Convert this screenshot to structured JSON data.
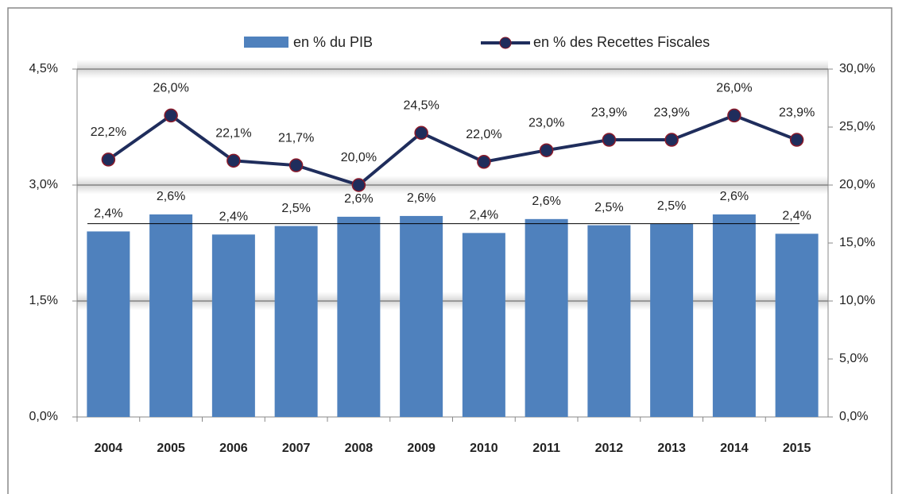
{
  "chart_data": {
    "type": "bar-line",
    "categories": [
      "2004",
      "2005",
      "2006",
      "2007",
      "2008",
      "2009",
      "2010",
      "2011",
      "2012",
      "2013",
      "2014",
      "2015"
    ],
    "series": [
      {
        "name": "en % du  PIB",
        "type": "bar",
        "color": "#4f81bd",
        "axis": "y",
        "values": [
          2.4,
          2.62,
          2.36,
          2.47,
          2.59,
          2.6,
          2.38,
          2.56,
          2.48,
          2.5,
          2.62,
          2.37
        ],
        "value_labels": [
          "2,4%",
          "2,6%",
          "2,4%",
          "2,5%",
          "2,6%",
          "2,6%",
          "2,4%",
          "2,6%",
          "2,5%",
          "2,5%",
          "2,6%",
          "2,4%"
        ]
      },
      {
        "name": "en % des Recettes Fiscales",
        "type": "line",
        "color": "#1f2d5c",
        "marker_color": "#8b1a2a",
        "axis": "y2",
        "values": [
          22.2,
          26.0,
          22.1,
          21.7,
          20.0,
          24.5,
          22.0,
          23.0,
          23.9,
          23.9,
          26.0,
          23.9
        ],
        "value_labels": [
          "22,2%",
          "26,0%",
          "22,1%",
          "21,7%",
          "20,0%",
          "24,5%",
          "22,0%",
          "23,0%",
          "23,9%",
          "23,9%",
          "26,0%",
          "23,9%"
        ]
      }
    ],
    "average_line": 2.5,
    "ylim": [
      0,
      4.5
    ],
    "yticks": [
      {
        "value": 0,
        "label": "0,0%"
      },
      {
        "value": 1.5,
        "label": "1,5%"
      },
      {
        "value": 3,
        "label": "3,0%"
      },
      {
        "value": 4.5,
        "label": "4,5%"
      }
    ],
    "y2lim": [
      0,
      30
    ],
    "y2ticks": [
      {
        "value": 0,
        "label": "0,0%"
      },
      {
        "value": 5,
        "label": "5,0%"
      },
      {
        "value": 10,
        "label": "10,0%"
      },
      {
        "value": 15,
        "label": "15,0%"
      },
      {
        "value": 20,
        "label": "20,0%"
      },
      {
        "value": 25,
        "label": "25,0%"
      },
      {
        "value": 30,
        "label": "30,0%"
      }
    ],
    "grid": true,
    "legend": "top"
  }
}
